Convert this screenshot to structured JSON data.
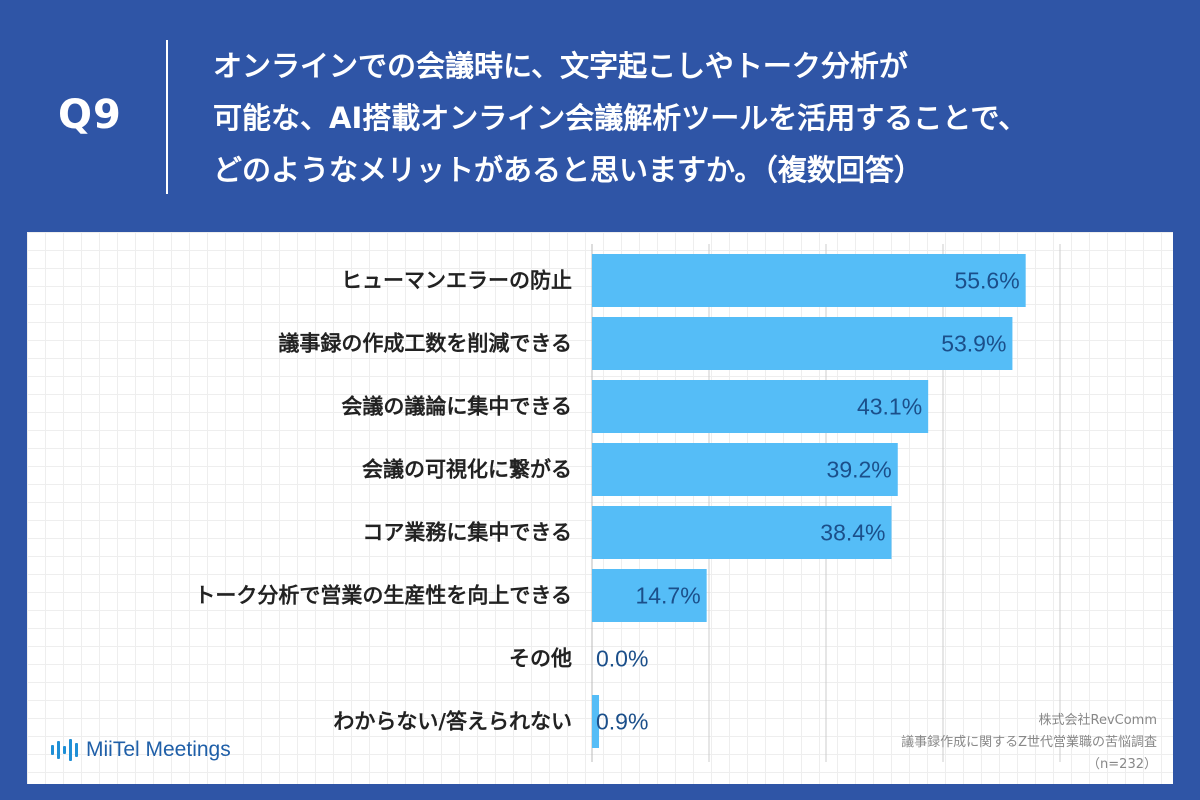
{
  "header": {
    "q_label": "Q9",
    "question_lines": [
      "オンラインでの会議時に、文字起こしやトーク分析が",
      "可能な、AI搭載オンライン会議解析ツールを活用することで、",
      "どのようなメリットがあると思いますか。（複数回答）"
    ]
  },
  "colors": {
    "background": "#2f55a6",
    "bar": "#55bdf7",
    "value_text": "#1b4f8a",
    "label_text": "#222222"
  },
  "chart_data": {
    "type": "bar",
    "orientation": "horizontal",
    "categories": [
      "ヒューマンエラーの防止",
      "議事録の作成工数を削減できる",
      "会議の議論に集中できる",
      "会議の可視化に繋がる",
      "コア業務に集中できる",
      "トーク分析で営業の生産性を向上できる",
      "その他",
      "わからない/答えられない"
    ],
    "values": [
      55.6,
      53.9,
      43.1,
      39.2,
      38.4,
      14.7,
      0.0,
      0.9
    ],
    "value_labels": [
      "55.6%",
      "53.9%",
      "43.1%",
      "39.2%",
      "38.4%",
      "14.7%",
      "0.0%",
      "0.9%"
    ],
    "xlim": [
      0,
      60
    ],
    "grid": true
  },
  "brand": {
    "name": "MiiTel Meetings",
    "icon": "audio-wave-icon"
  },
  "source": {
    "company": "株式会社RevComm",
    "survey": "議事録作成に関するZ世代営業職の苦悩調査",
    "sample": "（n=232）"
  }
}
